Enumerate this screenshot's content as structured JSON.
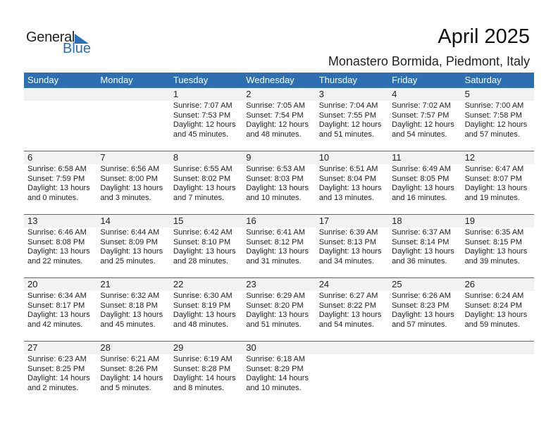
{
  "logo": {
    "general": "General",
    "blue": "Blue"
  },
  "title": "April 2025",
  "location": "Monastero Bormida, Piedmont, Italy",
  "weekdays": [
    "Sunday",
    "Monday",
    "Tuesday",
    "Wednesday",
    "Thursday",
    "Friday",
    "Saturday"
  ],
  "accent": "#2e6fb2",
  "weeks": [
    [
      null,
      null,
      {
        "day": "1",
        "sunrise": "Sunrise: 7:07 AM",
        "sunset": "Sunset: 7:53 PM",
        "daylight": "Daylight: 12 hours",
        "minutes": "and 45 minutes."
      },
      {
        "day": "2",
        "sunrise": "Sunrise: 7:05 AM",
        "sunset": "Sunset: 7:54 PM",
        "daylight": "Daylight: 12 hours",
        "minutes": "and 48 minutes."
      },
      {
        "day": "3",
        "sunrise": "Sunrise: 7:04 AM",
        "sunset": "Sunset: 7:55 PM",
        "daylight": "Daylight: 12 hours",
        "minutes": "and 51 minutes."
      },
      {
        "day": "4",
        "sunrise": "Sunrise: 7:02 AM",
        "sunset": "Sunset: 7:57 PM",
        "daylight": "Daylight: 12 hours",
        "minutes": "and 54 minutes."
      },
      {
        "day": "5",
        "sunrise": "Sunrise: 7:00 AM",
        "sunset": "Sunset: 7:58 PM",
        "daylight": "Daylight: 12 hours",
        "minutes": "and 57 minutes."
      }
    ],
    [
      {
        "day": "6",
        "sunrise": "Sunrise: 6:58 AM",
        "sunset": "Sunset: 7:59 PM",
        "daylight": "Daylight: 13 hours",
        "minutes": "and 0 minutes."
      },
      {
        "day": "7",
        "sunrise": "Sunrise: 6:56 AM",
        "sunset": "Sunset: 8:00 PM",
        "daylight": "Daylight: 13 hours",
        "minutes": "and 3 minutes."
      },
      {
        "day": "8",
        "sunrise": "Sunrise: 6:55 AM",
        "sunset": "Sunset: 8:02 PM",
        "daylight": "Daylight: 13 hours",
        "minutes": "and 7 minutes."
      },
      {
        "day": "9",
        "sunrise": "Sunrise: 6:53 AM",
        "sunset": "Sunset: 8:03 PM",
        "daylight": "Daylight: 13 hours",
        "minutes": "and 10 minutes."
      },
      {
        "day": "10",
        "sunrise": "Sunrise: 6:51 AM",
        "sunset": "Sunset: 8:04 PM",
        "daylight": "Daylight: 13 hours",
        "minutes": "and 13 minutes."
      },
      {
        "day": "11",
        "sunrise": "Sunrise: 6:49 AM",
        "sunset": "Sunset: 8:05 PM",
        "daylight": "Daylight: 13 hours",
        "minutes": "and 16 minutes."
      },
      {
        "day": "12",
        "sunrise": "Sunrise: 6:47 AM",
        "sunset": "Sunset: 8:07 PM",
        "daylight": "Daylight: 13 hours",
        "minutes": "and 19 minutes."
      }
    ],
    [
      {
        "day": "13",
        "sunrise": "Sunrise: 6:46 AM",
        "sunset": "Sunset: 8:08 PM",
        "daylight": "Daylight: 13 hours",
        "minutes": "and 22 minutes."
      },
      {
        "day": "14",
        "sunrise": "Sunrise: 6:44 AM",
        "sunset": "Sunset: 8:09 PM",
        "daylight": "Daylight: 13 hours",
        "minutes": "and 25 minutes."
      },
      {
        "day": "15",
        "sunrise": "Sunrise: 6:42 AM",
        "sunset": "Sunset: 8:10 PM",
        "daylight": "Daylight: 13 hours",
        "minutes": "and 28 minutes."
      },
      {
        "day": "16",
        "sunrise": "Sunrise: 6:41 AM",
        "sunset": "Sunset: 8:12 PM",
        "daylight": "Daylight: 13 hours",
        "minutes": "and 31 minutes."
      },
      {
        "day": "17",
        "sunrise": "Sunrise: 6:39 AM",
        "sunset": "Sunset: 8:13 PM",
        "daylight": "Daylight: 13 hours",
        "minutes": "and 34 minutes."
      },
      {
        "day": "18",
        "sunrise": "Sunrise: 6:37 AM",
        "sunset": "Sunset: 8:14 PM",
        "daylight": "Daylight: 13 hours",
        "minutes": "and 36 minutes."
      },
      {
        "day": "19",
        "sunrise": "Sunrise: 6:35 AM",
        "sunset": "Sunset: 8:15 PM",
        "daylight": "Daylight: 13 hours",
        "minutes": "and 39 minutes."
      }
    ],
    [
      {
        "day": "20",
        "sunrise": "Sunrise: 6:34 AM",
        "sunset": "Sunset: 8:17 PM",
        "daylight": "Daylight: 13 hours",
        "minutes": "and 42 minutes."
      },
      {
        "day": "21",
        "sunrise": "Sunrise: 6:32 AM",
        "sunset": "Sunset: 8:18 PM",
        "daylight": "Daylight: 13 hours",
        "minutes": "and 45 minutes."
      },
      {
        "day": "22",
        "sunrise": "Sunrise: 6:30 AM",
        "sunset": "Sunset: 8:19 PM",
        "daylight": "Daylight: 13 hours",
        "minutes": "and 48 minutes."
      },
      {
        "day": "23",
        "sunrise": "Sunrise: 6:29 AM",
        "sunset": "Sunset: 8:20 PM",
        "daylight": "Daylight: 13 hours",
        "minutes": "and 51 minutes."
      },
      {
        "day": "24",
        "sunrise": "Sunrise: 6:27 AM",
        "sunset": "Sunset: 8:22 PM",
        "daylight": "Daylight: 13 hours",
        "minutes": "and 54 minutes."
      },
      {
        "day": "25",
        "sunrise": "Sunrise: 6:26 AM",
        "sunset": "Sunset: 8:23 PM",
        "daylight": "Daylight: 13 hours",
        "minutes": "and 57 minutes."
      },
      {
        "day": "26",
        "sunrise": "Sunrise: 6:24 AM",
        "sunset": "Sunset: 8:24 PM",
        "daylight": "Daylight: 13 hours",
        "minutes": "and 59 minutes."
      }
    ],
    [
      {
        "day": "27",
        "sunrise": "Sunrise: 6:23 AM",
        "sunset": "Sunset: 8:25 PM",
        "daylight": "Daylight: 14 hours",
        "minutes": "and 2 minutes."
      },
      {
        "day": "28",
        "sunrise": "Sunrise: 6:21 AM",
        "sunset": "Sunset: 8:26 PM",
        "daylight": "Daylight: 14 hours",
        "minutes": "and 5 minutes."
      },
      {
        "day": "29",
        "sunrise": "Sunrise: 6:19 AM",
        "sunset": "Sunset: 8:28 PM",
        "daylight": "Daylight: 14 hours",
        "minutes": "and 8 minutes."
      },
      {
        "day": "30",
        "sunrise": "Sunrise: 6:18 AM",
        "sunset": "Sunset: 8:29 PM",
        "daylight": "Daylight: 14 hours",
        "minutes": "and 10 minutes."
      },
      null,
      null,
      null
    ]
  ]
}
